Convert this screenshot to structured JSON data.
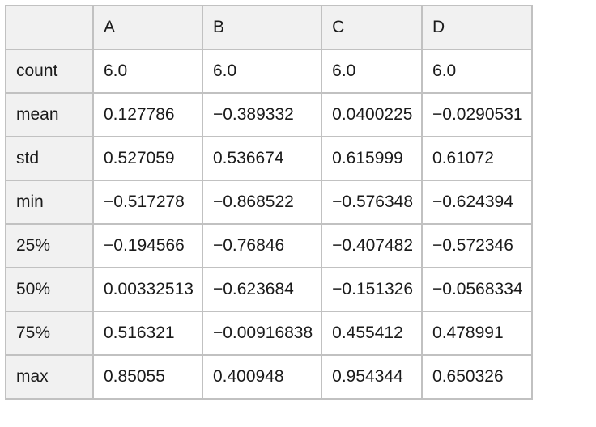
{
  "table": {
    "columns": [
      "",
      "A",
      "B",
      "C",
      "D"
    ],
    "rows": [
      {
        "label": "count",
        "values": [
          "6.0",
          "6.0",
          "6.0",
          "6.0"
        ]
      },
      {
        "label": "mean",
        "values": [
          "0.127786",
          "−0.389332",
          "0.0400225",
          "−0.0290531"
        ]
      },
      {
        "label": "std",
        "values": [
          "0.527059",
          "0.536674",
          "0.615999",
          "0.61072"
        ]
      },
      {
        "label": "min",
        "values": [
          "−0.517278",
          "−0.868522",
          "−0.576348",
          "−0.624394"
        ]
      },
      {
        "label": "25%",
        "values": [
          "−0.194566",
          "−0.76846",
          "−0.407482",
          "−0.572346"
        ]
      },
      {
        "label": "50%",
        "values": [
          "0.00332513",
          "−0.623684",
          "−0.151326",
          "−0.0568334"
        ]
      },
      {
        "label": "75%",
        "values": [
          "0.516321",
          "−0.00916838",
          "0.455412",
          "0.478991"
        ]
      },
      {
        "label": "max",
        "values": [
          "0.85055",
          "0.400948",
          "0.954344",
          "0.650326"
        ]
      }
    ]
  },
  "chart_data": {
    "type": "table",
    "title": "",
    "columns": [
      "A",
      "B",
      "C",
      "D"
    ],
    "index": [
      "count",
      "mean",
      "std",
      "min",
      "25%",
      "50%",
      "75%",
      "max"
    ],
    "values": [
      [
        6.0,
        6.0,
        6.0,
        6.0
      ],
      [
        0.127786,
        -0.389332,
        0.0400225,
        -0.0290531
      ],
      [
        0.527059,
        0.536674,
        0.615999,
        0.61072
      ],
      [
        -0.517278,
        -0.868522,
        -0.576348,
        -0.624394
      ],
      [
        -0.194566,
        -0.76846,
        -0.407482,
        -0.572346
      ],
      [
        0.00332513,
        -0.623684,
        -0.151326,
        -0.0568334
      ],
      [
        0.516321,
        -0.00916838,
        0.455412,
        0.478991
      ],
      [
        0.85055,
        0.400948,
        0.954344,
        0.650326
      ]
    ]
  },
  "colors": {
    "header_background": "#f1f1f1",
    "cell_background": "#ffffff",
    "border": "#c1c1c1",
    "text": "#1a1a1a"
  }
}
